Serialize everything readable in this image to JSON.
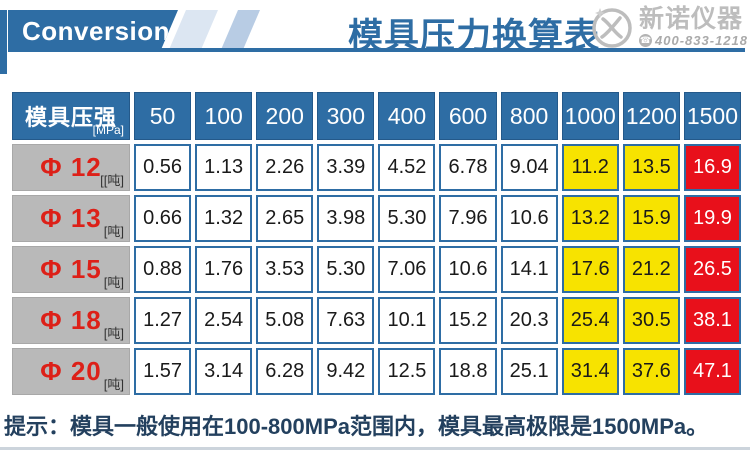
{
  "banner": {
    "label": "Conversion"
  },
  "header": {
    "title": "模具压力换算表",
    "logo": {
      "brand": "新诺仪器",
      "phone": "400-833-1218"
    }
  },
  "table": {
    "corner": {
      "label": "模具压强",
      "unit": "[MPa]"
    },
    "pressure_headers": [
      "50",
      "100",
      "200",
      "300",
      "400",
      "600",
      "800",
      "1000",
      "1200",
      "1500"
    ],
    "yellow_columns": [
      7,
      8
    ],
    "red_columns": [
      9
    ],
    "rows": [
      {
        "label": "Φ 12",
        "unit": "[[吨]",
        "values": [
          "0.56",
          "1.13",
          "2.26",
          "3.39",
          "4.52",
          "6.78",
          "9.04",
          "11.2",
          "13.5",
          "16.9"
        ]
      },
      {
        "label": "Φ 13",
        "unit": "[吨]",
        "values": [
          "0.66",
          "1.32",
          "2.65",
          "3.98",
          "5.30",
          "7.96",
          "10.6",
          "13.2",
          "15.9",
          "19.9"
        ]
      },
      {
        "label": "Φ 15",
        "unit": "[吨]",
        "values": [
          "0.88",
          "1.76",
          "3.53",
          "5.30",
          "7.06",
          "10.6",
          "14.1",
          "17.6",
          "21.2",
          "26.5"
        ]
      },
      {
        "label": "Φ 18",
        "unit": "[吨]",
        "values": [
          "1.27",
          "2.54",
          "5.08",
          "7.63",
          "10.1",
          "15.2",
          "20.3",
          "25.4",
          "30.5",
          "38.1"
        ]
      },
      {
        "label": "Φ 20",
        "unit": "[吨]",
        "values": [
          "1.57",
          "3.14",
          "6.28",
          "9.42",
          "12.5",
          "18.8",
          "25.1",
          "31.4",
          "37.6",
          "47.1"
        ]
      }
    ]
  },
  "footer": {
    "note": "提示：模具一般使用在100-800MPa范围内，模具最高极限是1500MPa。"
  },
  "colors": {
    "primary_blue": "#2e6da4",
    "band_light": "#dce6f2",
    "band_medium": "#b8cce4",
    "label_gray": "#b9b9b9",
    "label_red": "#dd2018",
    "highlight_yellow": "#f7e300",
    "highlight_red": "#e8101b",
    "note_navy": "#23405e",
    "logo_gray": "#bdbdbd"
  },
  "chart_data": {
    "type": "table",
    "title": "模具压力换算表",
    "column_header": "模具压强 [MPa]",
    "pressures_mpa": [
      50,
      100,
      200,
      300,
      400,
      600,
      800,
      1000,
      1200,
      1500
    ],
    "row_unit": "吨",
    "series": [
      {
        "name": "Φ12",
        "values": [
          0.56,
          1.13,
          2.26,
          3.39,
          4.52,
          6.78,
          9.04,
          11.2,
          13.5,
          16.9
        ]
      },
      {
        "name": "Φ13",
        "values": [
          0.66,
          1.32,
          2.65,
          3.98,
          5.3,
          7.96,
          10.6,
          13.2,
          15.9,
          19.9
        ]
      },
      {
        "name": "Φ15",
        "values": [
          0.88,
          1.76,
          3.53,
          5.3,
          7.06,
          10.6,
          14.1,
          17.6,
          21.2,
          26.5
        ]
      },
      {
        "name": "Φ18",
        "values": [
          1.27,
          2.54,
          5.08,
          7.63,
          10.1,
          15.2,
          20.3,
          25.4,
          30.5,
          38.1
        ]
      },
      {
        "name": "Φ20",
        "values": [
          1.57,
          3.14,
          6.28,
          9.42,
          12.5,
          18.8,
          25.1,
          31.4,
          37.6,
          47.1
        ]
      }
    ],
    "highlight": {
      "yellow_pressures_mpa": [
        1000,
        1200
      ],
      "red_pressures_mpa": [
        1500
      ]
    },
    "note": "提示：模具一般使用在100-800MPa范围内，模具最高极限是1500MPa。"
  }
}
